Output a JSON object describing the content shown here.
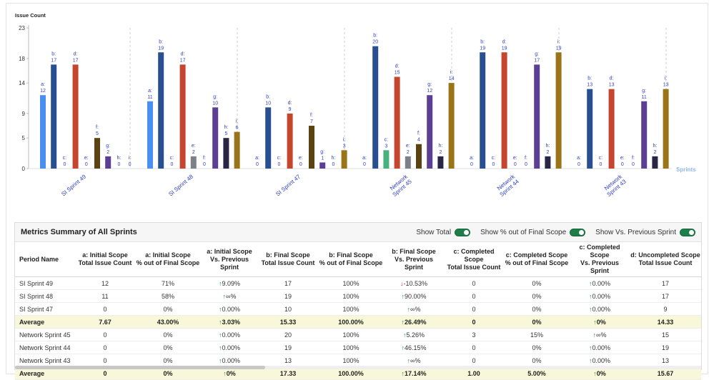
{
  "chart_data": {
    "type": "bar",
    "ylabel": "Issue Count",
    "xlabel": "Sprints",
    "ylim": [
      0,
      23
    ],
    "yticks": [
      0,
      5,
      9,
      14,
      18,
      23
    ],
    "grid": false,
    "categories": [
      "SI Sprint 49",
      "SI Sprint 48",
      "SI Sprint 47",
      "Network Sprint 45",
      "Network Sprint 44",
      "Network Sprint 43"
    ],
    "series": [
      {
        "name": "a",
        "color": "#4a8ef2",
        "values": [
          12,
          11,
          0,
          0,
          0,
          0
        ]
      },
      {
        "name": "b",
        "color": "#284f91",
        "values": [
          17,
          19,
          10,
          20,
          19,
          13
        ]
      },
      {
        "name": "c",
        "color": "#48b27e",
        "values": [
          0,
          0,
          0,
          3,
          0,
          0
        ]
      },
      {
        "name": "d",
        "color": "#c6452f",
        "values": [
          17,
          17,
          9,
          15,
          19,
          13
        ]
      },
      {
        "name": "e",
        "color": "#7c8088",
        "values": [
          0,
          2,
          0,
          2,
          0,
          0
        ]
      },
      {
        "name": "f",
        "color": "#5a4310",
        "values": [
          5,
          0,
          7,
          4,
          0,
          0
        ]
      },
      {
        "name": "g",
        "color": "#5b3f95",
        "values": [
          2,
          10,
          1,
          12,
          17,
          11
        ]
      },
      {
        "name": "h",
        "color": "#2a2545",
        "values": [
          0,
          5,
          0,
          2,
          2,
          2
        ]
      },
      {
        "name": "i",
        "color": "#9a7418",
        "values": [
          0,
          6,
          3,
          14,
          19,
          13
        ]
      }
    ]
  },
  "summary": {
    "title": "Metrics Summary of All Sprints",
    "toggles": [
      "Show Total",
      "Show % out of Final Scope",
      "Show Vs. Previous Sprint"
    ],
    "columns": [
      [
        "Period Name",
        ""
      ],
      [
        "a: Initial Scope",
        "Total Issue Count"
      ],
      [
        "a: Initial Scope",
        "% out of Final Scope"
      ],
      [
        "a: Initial Scope",
        "Vs. Previous Sprint"
      ],
      [
        "b: Final Scope",
        "Total Issue Count"
      ],
      [
        "b: Final Scope",
        "% out of Final Scope"
      ],
      [
        "b: Final Scope",
        "Vs. Previous Sprint"
      ],
      [
        "c: Completed Scope",
        "Total Issue Count"
      ],
      [
        "c: Completed Scope",
        "% out of Final Scope"
      ],
      [
        "c: Completed Scope",
        "Vs. Previous Sprint"
      ],
      [
        "d: Uncompleted Scope",
        "Total Issue Count"
      ]
    ],
    "rows": [
      {
        "avg": false,
        "cells": [
          "SI Sprint 49",
          "12",
          "71%",
          "↑9.09%",
          "17",
          "100%",
          "↓-10.53%",
          "0",
          "0%",
          "↑0.00%",
          "17"
        ]
      },
      {
        "avg": false,
        "cells": [
          "SI Sprint 48",
          "11",
          "58%",
          "↑∞%",
          "19",
          "100%",
          "↑90.00%",
          "0",
          "0%",
          "↑0.00%",
          "17"
        ]
      },
      {
        "avg": false,
        "cells": [
          "SI Sprint 47",
          "0",
          "0%",
          "↑0.00%",
          "10",
          "100%",
          "↑∞%",
          "0",
          "0%",
          "↑0.00%",
          "9"
        ]
      },
      {
        "avg": true,
        "cells": [
          "Average",
          "7.67",
          "43.00%",
          "↑3.03%",
          "15.33",
          "100.00%",
          "↑26.49%",
          "0",
          "0%",
          "↑0%",
          "14.33"
        ]
      },
      {
        "avg": false,
        "cells": [
          "Network Sprint 45",
          "0",
          "0%",
          "↑0.00%",
          "20",
          "100%",
          "↑5.26%",
          "3",
          "15%",
          "↑∞%",
          "15"
        ]
      },
      {
        "avg": false,
        "cells": [
          "Network Sprint 44",
          "0",
          "0%",
          "↑0.00%",
          "19",
          "100%",
          "↑46.15%",
          "0",
          "0%",
          "↑0.00%",
          "19"
        ]
      },
      {
        "avg": false,
        "cells": [
          "Network Sprint 43",
          "0",
          "0%",
          "↑0.00%",
          "13",
          "100%",
          "↑∞%",
          "0",
          "0%",
          "↑0.00%",
          "13"
        ]
      },
      {
        "avg": true,
        "cells": [
          "Average",
          "0",
          "0%",
          "↑0%",
          "17.33",
          "100.00%",
          "↑17.14%",
          "1.00",
          "5.00%",
          "↑0%",
          "15.67"
        ]
      }
    ]
  }
}
